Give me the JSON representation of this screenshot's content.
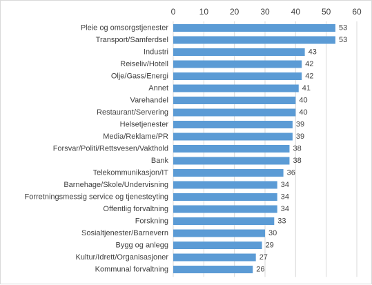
{
  "chart_data": {
    "type": "bar",
    "orientation": "horizontal",
    "title": "",
    "xlabel": "",
    "ylabel": "",
    "xlim": [
      0,
      60
    ],
    "x_ticks": [
      0,
      10,
      20,
      30,
      40,
      50,
      60
    ],
    "axis_position": "top",
    "grid": true,
    "data_labels": true,
    "bar_color": "#5b9bd5",
    "grid_color": "#d9d9d9",
    "categories": [
      "Pleie og omsorgstjenester",
      "Transport/Samferdsel",
      "Industri",
      "Reiseliv/Hotell",
      "Olje/Gass/Energi",
      "Annet",
      "Varehandel",
      "Restaurant/Servering",
      "Helsetjenester",
      "Media/Reklame/PR",
      "Forsvar/Politi/Rettsvesen/Vakthold",
      "Bank",
      "Telekommunikasjon/IT",
      "Barnehage/Skole/Undervisning",
      "Forretningsmessig service og tjenesteyting",
      "Offentlig forvaltning",
      "Forskning",
      "Sosialtjenester/Barnevern",
      "Bygg og anlegg",
      "Kultur/Idrett/Organisasjoner",
      "Kommunal forvaltning"
    ],
    "values": [
      53,
      53,
      43,
      42,
      42,
      41,
      40,
      40,
      39,
      39,
      38,
      38,
      36,
      34,
      34,
      34,
      33,
      30,
      29,
      27,
      26
    ]
  }
}
